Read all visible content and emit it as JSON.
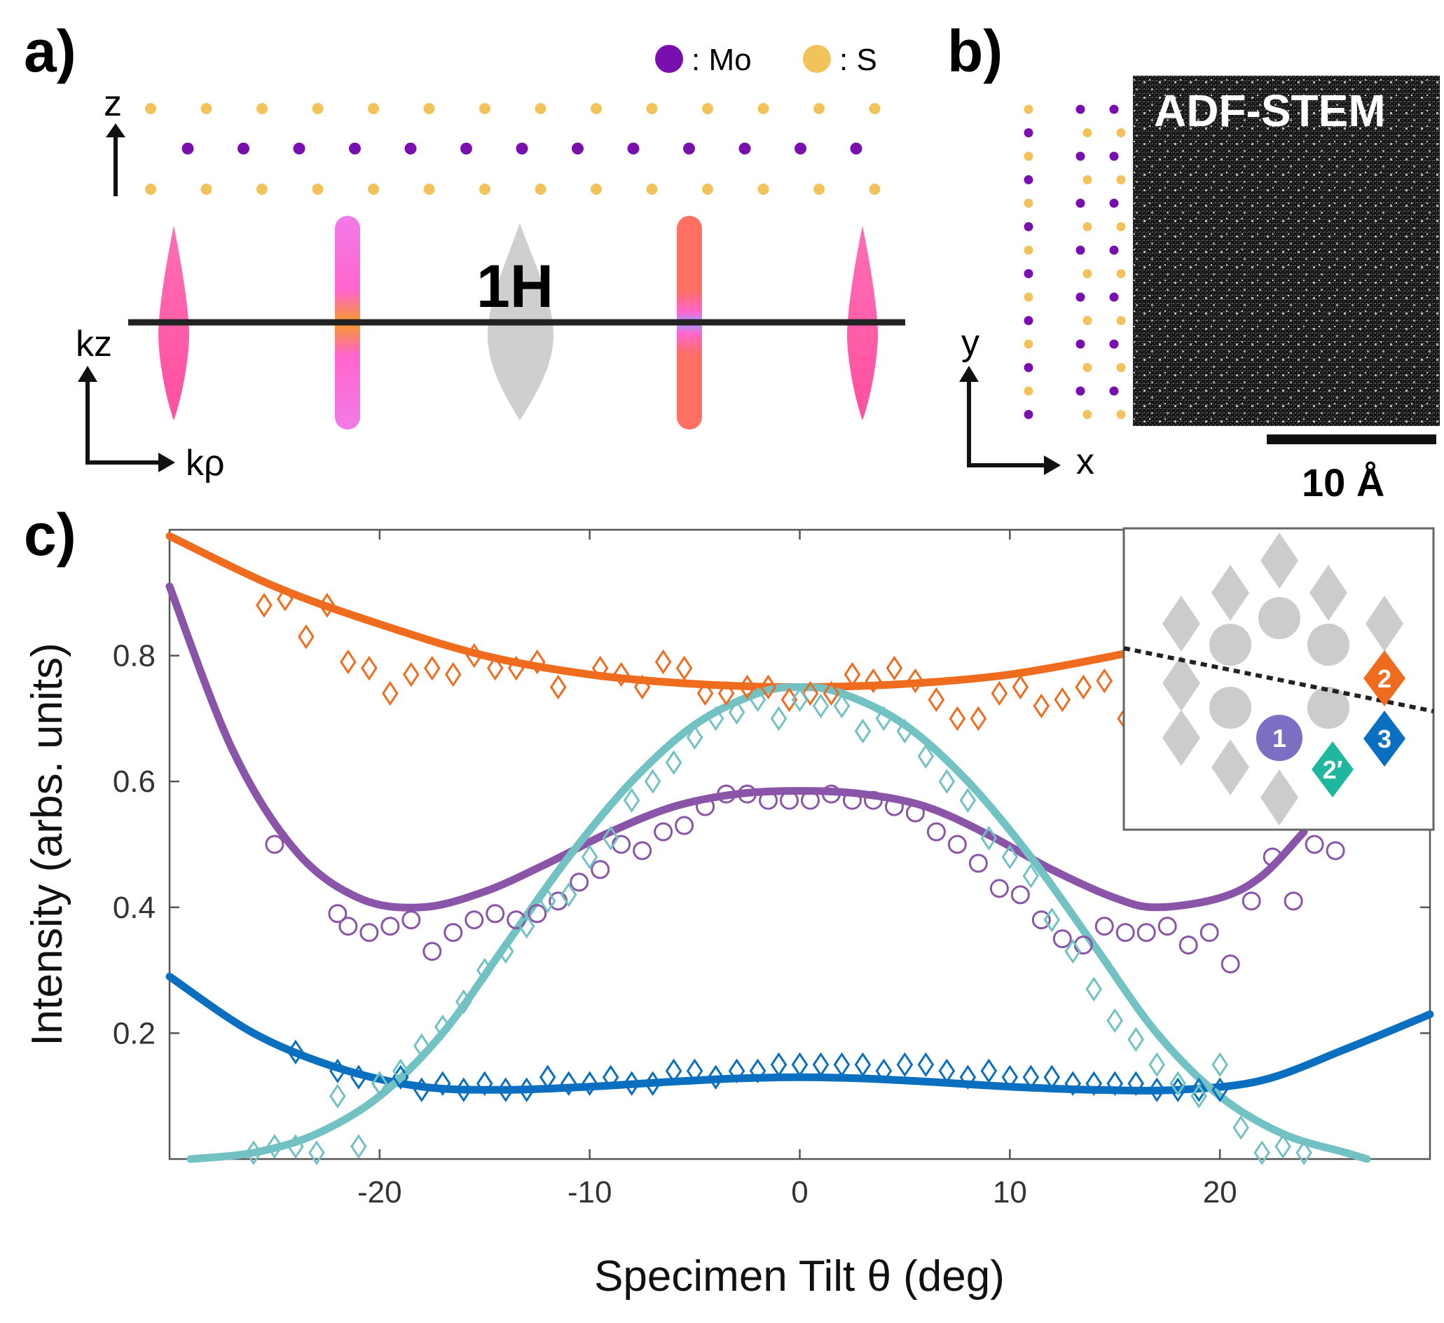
{
  "panels": {
    "a": "a)",
    "b": "b)",
    "c": "c)"
  },
  "legend": {
    "mo_label": ": Mo",
    "s_label": ": S"
  },
  "colors": {
    "mo": "#7a0fb0",
    "s": "#f2c35a",
    "orange": "#ef6c1f",
    "purple": "#8a55a8",
    "blue": "#0a6fbf",
    "teal": "#72c2c4",
    "inset_gray": "#cccccc",
    "badge1": "#7b6fc4",
    "badge2": "#ef6c1f",
    "badge2p": "#1fb79e",
    "badge3": "#0a6fbf"
  },
  "panel_a": {
    "z_axis": "z",
    "kz_axis": "kz",
    "krho_axis": "kρ",
    "phase_label": "1H"
  },
  "panel_b": {
    "y_axis": "y",
    "x_axis": "x",
    "image_title": "ADF-STEM",
    "scale_bar": "10 Å"
  },
  "inset": {
    "badge1": "1",
    "badge2": "2",
    "badge2p": "2′",
    "badge3": "3"
  },
  "chart_data": {
    "type": "scatter",
    "xlabel": "Specimen Tilt θ (deg)",
    "ylabel": "Intensity (arbs. units)",
    "xlim": [
      -30,
      30
    ],
    "ylim": [
      0,
      1.0
    ],
    "xticks": [
      -20,
      -10,
      0,
      10,
      20
    ],
    "xtick_labels": [
      "-20",
      "-10",
      "0",
      "10",
      "20"
    ],
    "yticks": [
      0.2,
      0.4,
      0.6,
      0.8
    ],
    "ytick_labels": [
      "0.2",
      "0.4",
      "0.6",
      "0.8"
    ],
    "series": [
      {
        "name": "spot 2",
        "color": "#ef6c1f",
        "marker": "diamond",
        "points": [
          [
            -25.5,
            0.88
          ],
          [
            -24.5,
            0.89
          ],
          [
            -23.5,
            0.83
          ],
          [
            -22.5,
            0.88
          ],
          [
            -21.5,
            0.79
          ],
          [
            -20.5,
            0.78
          ],
          [
            -19.5,
            0.74
          ],
          [
            -18.5,
            0.77
          ],
          [
            -17.5,
            0.78
          ],
          [
            -16.5,
            0.77
          ],
          [
            -15.5,
            0.8
          ],
          [
            -14.5,
            0.78
          ],
          [
            -13.5,
            0.78
          ],
          [
            -12.5,
            0.79
          ],
          [
            -11.5,
            0.75
          ],
          [
            -9.5,
            0.78
          ],
          [
            -8.5,
            0.77
          ],
          [
            -7.5,
            0.75
          ],
          [
            -6.5,
            0.79
          ],
          [
            -5.5,
            0.78
          ],
          [
            -4.5,
            0.74
          ],
          [
            -3.5,
            0.74
          ],
          [
            -2.5,
            0.75
          ],
          [
            -1.5,
            0.75
          ],
          [
            -0.5,
            0.73
          ],
          [
            0.5,
            0.74
          ],
          [
            1.5,
            0.74
          ],
          [
            2.5,
            0.77
          ],
          [
            3.5,
            0.76
          ],
          [
            4.5,
            0.78
          ],
          [
            5.5,
            0.76
          ],
          [
            6.5,
            0.73
          ],
          [
            7.5,
            0.7
          ],
          [
            8.5,
            0.7
          ],
          [
            9.5,
            0.74
          ],
          [
            10.5,
            0.75
          ],
          [
            11.5,
            0.72
          ],
          [
            12.5,
            0.73
          ],
          [
            13.5,
            0.75
          ],
          [
            14.5,
            0.76
          ],
          [
            15.5,
            0.7
          ]
        ],
        "fit": [
          [
            -30,
            0.99
          ],
          [
            -25,
            0.91
          ],
          [
            -20,
            0.85
          ],
          [
            -15,
            0.8
          ],
          [
            -10,
            0.77
          ],
          [
            -5,
            0.755
          ],
          [
            0,
            0.75
          ],
          [
            5,
            0.755
          ],
          [
            10,
            0.77
          ],
          [
            15,
            0.8
          ],
          [
            16,
            0.81
          ]
        ]
      },
      {
        "name": "spot 1",
        "color": "#8a55a8",
        "marker": "circle",
        "points": [
          [
            -25,
            0.5
          ],
          [
            -22,
            0.39
          ],
          [
            -21.5,
            0.37
          ],
          [
            -20.5,
            0.36
          ],
          [
            -19.5,
            0.37
          ],
          [
            -18.5,
            0.38
          ],
          [
            -17.5,
            0.33
          ],
          [
            -16.5,
            0.36
          ],
          [
            -15.5,
            0.38
          ],
          [
            -14.5,
            0.39
          ],
          [
            -13.5,
            0.38
          ],
          [
            -12.5,
            0.39
          ],
          [
            -11.5,
            0.41
          ],
          [
            -10.5,
            0.44
          ],
          [
            -9.5,
            0.46
          ],
          [
            -8.5,
            0.5
          ],
          [
            -7.5,
            0.49
          ],
          [
            -6.5,
            0.52
          ],
          [
            -5.5,
            0.53
          ],
          [
            -4.5,
            0.56
          ],
          [
            -3.5,
            0.58
          ],
          [
            -2.5,
            0.58
          ],
          [
            -1.5,
            0.57
          ],
          [
            -0.5,
            0.57
          ],
          [
            0.5,
            0.57
          ],
          [
            1.5,
            0.58
          ],
          [
            2.5,
            0.57
          ],
          [
            3.5,
            0.57
          ],
          [
            4.5,
            0.56
          ],
          [
            5.5,
            0.55
          ],
          [
            6.5,
            0.52
          ],
          [
            7.5,
            0.5
          ],
          [
            8.5,
            0.47
          ],
          [
            9.5,
            0.43
          ],
          [
            10.5,
            0.42
          ],
          [
            11.5,
            0.38
          ],
          [
            12.5,
            0.35
          ],
          [
            13.5,
            0.34
          ],
          [
            14.5,
            0.37
          ],
          [
            15.5,
            0.36
          ],
          [
            16.5,
            0.36
          ],
          [
            17.5,
            0.37
          ],
          [
            18.5,
            0.34
          ],
          [
            19.5,
            0.36
          ],
          [
            20.5,
            0.31
          ],
          [
            21.5,
            0.41
          ],
          [
            22.5,
            0.48
          ],
          [
            23.5,
            0.41
          ],
          [
            24.5,
            0.5
          ],
          [
            25.5,
            0.49
          ]
        ],
        "fit": [
          [
            -30,
            0.91
          ],
          [
            -27,
            0.65
          ],
          [
            -24,
            0.49
          ],
          [
            -21,
            0.415
          ],
          [
            -18,
            0.4
          ],
          [
            -15,
            0.425
          ],
          [
            -12,
            0.47
          ],
          [
            -9,
            0.52
          ],
          [
            -6,
            0.56
          ],
          [
            -3,
            0.58
          ],
          [
            0,
            0.585
          ],
          [
            3,
            0.58
          ],
          [
            6,
            0.56
          ],
          [
            9,
            0.515
          ],
          [
            12,
            0.46
          ],
          [
            15,
            0.415
          ],
          [
            17,
            0.4
          ],
          [
            20,
            0.415
          ],
          [
            22,
            0.45
          ],
          [
            24,
            0.52
          ]
        ]
      },
      {
        "name": "spot 3",
        "color": "#0a6fbf",
        "marker": "diamond",
        "points": [
          [
            -24,
            0.17
          ],
          [
            -22,
            0.14
          ],
          [
            -21,
            0.13
          ],
          [
            -20,
            0.12
          ],
          [
            -19,
            0.13
          ],
          [
            -18,
            0.11
          ],
          [
            -17,
            0.12
          ],
          [
            -16,
            0.11
          ],
          [
            -15,
            0.12
          ],
          [
            -14,
            0.11
          ],
          [
            -13,
            0.11
          ],
          [
            -12,
            0.13
          ],
          [
            -11,
            0.12
          ],
          [
            -10,
            0.12
          ],
          [
            -9,
            0.13
          ],
          [
            -8,
            0.12
          ],
          [
            -7,
            0.12
          ],
          [
            -6,
            0.14
          ],
          [
            -5,
            0.14
          ],
          [
            -4,
            0.13
          ],
          [
            -3,
            0.14
          ],
          [
            -2,
            0.14
          ],
          [
            -1,
            0.15
          ],
          [
            0,
            0.15
          ],
          [
            1,
            0.15
          ],
          [
            2,
            0.15
          ],
          [
            3,
            0.15
          ],
          [
            4,
            0.14
          ],
          [
            5,
            0.15
          ],
          [
            6,
            0.15
          ],
          [
            7,
            0.14
          ],
          [
            8,
            0.13
          ],
          [
            9,
            0.14
          ],
          [
            10,
            0.13
          ],
          [
            11,
            0.13
          ],
          [
            12,
            0.13
          ],
          [
            13,
            0.12
          ],
          [
            14,
            0.12
          ],
          [
            15,
            0.12
          ],
          [
            16,
            0.12
          ],
          [
            17,
            0.11
          ],
          [
            18,
            0.11
          ],
          [
            19,
            0.11
          ],
          [
            20,
            0.11
          ]
        ],
        "fit": [
          [
            -30,
            0.29
          ],
          [
            -26,
            0.2
          ],
          [
            -22,
            0.145
          ],
          [
            -18,
            0.115
          ],
          [
            -14,
            0.11
          ],
          [
            -10,
            0.115
          ],
          [
            -6,
            0.123
          ],
          [
            -3,
            0.128
          ],
          [
            0,
            0.13
          ],
          [
            3,
            0.128
          ],
          [
            6,
            0.123
          ],
          [
            10,
            0.115
          ],
          [
            14,
            0.11
          ],
          [
            18,
            0.11
          ],
          [
            22,
            0.125
          ],
          [
            26,
            0.175
          ],
          [
            30,
            0.23
          ]
        ]
      },
      {
        "name": "spot 2′",
        "color": "#72c2c4",
        "marker": "diamond",
        "points": [
          [
            -26,
            0.01
          ],
          [
            -25,
            0.02
          ],
          [
            -24,
            0.02
          ],
          [
            -23,
            0.01
          ],
          [
            -22,
            0.1
          ],
          [
            -21,
            0.02
          ],
          [
            -20,
            0.12
          ],
          [
            -19,
            0.14
          ],
          [
            -18,
            0.18
          ],
          [
            -17,
            0.21
          ],
          [
            -16,
            0.25
          ],
          [
            -15,
            0.3
          ],
          [
            -14,
            0.33
          ],
          [
            -13,
            0.37
          ],
          [
            -12,
            0.41
          ],
          [
            -11,
            0.42
          ],
          [
            -10,
            0.48
          ],
          [
            -9,
            0.51
          ],
          [
            -8,
            0.57
          ],
          [
            -7,
            0.6
          ],
          [
            -6,
            0.63
          ],
          [
            -5,
            0.67
          ],
          [
            -4,
            0.7
          ],
          [
            -3,
            0.71
          ],
          [
            -2,
            0.73
          ],
          [
            -1,
            0.7
          ],
          [
            0,
            0.73
          ],
          [
            1,
            0.72
          ],
          [
            2,
            0.72
          ],
          [
            3,
            0.68
          ],
          [
            4,
            0.7
          ],
          [
            5,
            0.68
          ],
          [
            6,
            0.64
          ],
          [
            7,
            0.6
          ],
          [
            8,
            0.57
          ],
          [
            9,
            0.51
          ],
          [
            10,
            0.48
          ],
          [
            11,
            0.45
          ],
          [
            12,
            0.38
          ],
          [
            13,
            0.33
          ],
          [
            14,
            0.27
          ],
          [
            15,
            0.22
          ],
          [
            16,
            0.19
          ],
          [
            17,
            0.15
          ],
          [
            18,
            0.12
          ],
          [
            19,
            0.1
          ],
          [
            20,
            0.15
          ],
          [
            21,
            0.05
          ],
          [
            22,
            0.01
          ],
          [
            23,
            0.02
          ],
          [
            24,
            0.01
          ]
        ],
        "fit": [
          [
            -29,
            0.0
          ],
          [
            -26,
            0.01
          ],
          [
            -23,
            0.04
          ],
          [
            -20,
            0.1
          ],
          [
            -17,
            0.2
          ],
          [
            -14,
            0.34
          ],
          [
            -11,
            0.48
          ],
          [
            -8,
            0.6
          ],
          [
            -5,
            0.69
          ],
          [
            -2,
            0.74
          ],
          [
            0,
            0.75
          ],
          [
            2,
            0.74
          ],
          [
            5,
            0.69
          ],
          [
            8,
            0.6
          ],
          [
            11,
            0.48
          ],
          [
            14,
            0.34
          ],
          [
            17,
            0.2
          ],
          [
            20,
            0.1
          ],
          [
            23,
            0.04
          ],
          [
            26,
            0.01
          ],
          [
            27,
            0.0
          ]
        ]
      }
    ]
  }
}
